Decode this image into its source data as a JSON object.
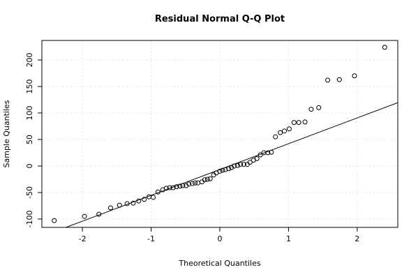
{
  "chart_data": {
    "type": "scatter",
    "title": "Residual Normal Q-Q Plot",
    "x_label": "Theoretical Quantiles",
    "y_label": "Sample Quantiles",
    "x": [
      -2.41,
      -1.97,
      -1.76,
      -1.59,
      -1.46,
      -1.35,
      -1.26,
      -1.18,
      -1.1,
      -1.03,
      -0.97,
      -0.9,
      -0.83,
      -0.78,
      -0.73,
      -0.68,
      -0.63,
      -0.58,
      -0.54,
      -0.49,
      -0.45,
      -0.4,
      -0.36,
      -0.32,
      -0.26,
      -0.22,
      -0.18,
      -0.14,
      -0.09,
      -0.05,
      0,
      0.04,
      0.08,
      0.13,
      0.17,
      0.21,
      0.26,
      0.3,
      0.35,
      0.4,
      0.44,
      0.49,
      0.54,
      0.59,
      0.64,
      0.7,
      0.75,
      0.81,
      0.88,
      0.94,
      1.01,
      1.08,
      1.15,
      1.24,
      1.33,
      1.44,
      1.57,
      1.74,
      1.96,
      2.4
    ],
    "values": [
      -103,
      -95,
      -91,
      -79,
      -74,
      -71,
      -70,
      -66,
      -63,
      -58,
      -59,
      -49,
      -45,
      -42,
      -41,
      -41,
      -39,
      -38,
      -37,
      -37,
      -34,
      -33,
      -32,
      -32,
      -30,
      -26,
      -25,
      -24,
      -17,
      -13,
      -10,
      -8,
      -7,
      -5,
      -3,
      0,
      1,
      3,
      3,
      3,
      7,
      11,
      14,
      21,
      25,
      25,
      26,
      55,
      63,
      66,
      70,
      82,
      82,
      83,
      107,
      110,
      162,
      163,
      170,
      224
    ],
    "reference_line": {
      "intercept": -6.7,
      "slope": 48.7
    },
    "color": "#000000",
    "xlim": [
      -2.59,
      2.59
    ],
    "ylim": [
      -115.8,
      236.8
    ],
    "xticks": [
      -2,
      -1,
      0,
      1,
      2
    ],
    "yticks": [
      -100,
      -50,
      0,
      50,
      100,
      150,
      200
    ],
    "grid": true
  }
}
